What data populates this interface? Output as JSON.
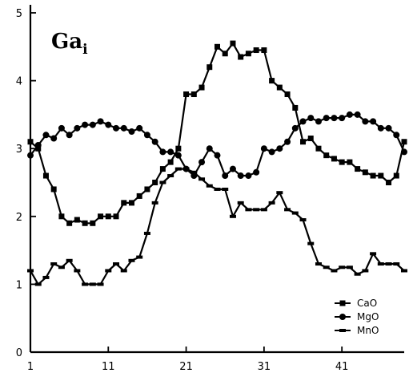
{
  "chart_data": {
    "type": "line",
    "title": "Ga",
    "title_subscript": "i",
    "xlabel": "",
    "ylabel": "",
    "xlim": [
      1,
      49
    ],
    "ylim": [
      0,
      5
    ],
    "xticks": [
      1,
      11,
      21,
      31,
      41
    ],
    "yticks": [
      0,
      1,
      2,
      3,
      4,
      5
    ],
    "grid": false,
    "legend_position": "bottom-right",
    "x": [
      1,
      2,
      3,
      4,
      5,
      6,
      7,
      8,
      9,
      10,
      11,
      12,
      13,
      14,
      15,
      16,
      17,
      18,
      19,
      20,
      21,
      22,
      23,
      24,
      25,
      26,
      27,
      28,
      29,
      30,
      31,
      32,
      33,
      34,
      35,
      36,
      37,
      38,
      39,
      40,
      41,
      42,
      43,
      44,
      45,
      46,
      47,
      48,
      49
    ],
    "series": [
      {
        "name": "CaO",
        "marker": "square",
        "values": [
          3.1,
          3.0,
          2.6,
          2.4,
          2.0,
          1.9,
          1.95,
          1.9,
          1.9,
          2.0,
          2.0,
          2.0,
          2.2,
          2.2,
          2.3,
          2.4,
          2.5,
          2.7,
          2.8,
          3.0,
          3.8,
          3.8,
          3.9,
          4.2,
          4.5,
          4.4,
          4.55,
          4.35,
          4.4,
          4.45,
          4.45,
          4.0,
          3.9,
          3.8,
          3.6,
          3.1,
          3.15,
          3.0,
          2.9,
          2.85,
          2.8,
          2.8,
          2.7,
          2.65,
          2.6,
          2.6,
          2.5,
          2.6,
          3.1
        ]
      },
      {
        "name": "MgO",
        "marker": "diamond",
        "values": [
          2.9,
          3.05,
          3.2,
          3.15,
          3.3,
          3.2,
          3.3,
          3.35,
          3.35,
          3.4,
          3.35,
          3.3,
          3.3,
          3.25,
          3.3,
          3.2,
          3.1,
          2.95,
          2.95,
          2.9,
          2.7,
          2.6,
          2.8,
          3.0,
          2.9,
          2.6,
          2.7,
          2.6,
          2.6,
          2.65,
          3.0,
          2.95,
          3.0,
          3.1,
          3.3,
          3.4,
          3.45,
          3.4,
          3.45,
          3.45,
          3.45,
          3.5,
          3.5,
          3.4,
          3.4,
          3.3,
          3.3,
          3.2,
          2.95
        ]
      },
      {
        "name": "MnO",
        "marker": "bar",
        "values": [
          1.2,
          1.0,
          1.1,
          1.3,
          1.25,
          1.35,
          1.2,
          1.0,
          1.0,
          1.0,
          1.2,
          1.3,
          1.2,
          1.35,
          1.4,
          1.75,
          2.2,
          2.5,
          2.6,
          2.7,
          2.7,
          2.65,
          2.55,
          2.45,
          2.4,
          2.4,
          2.0,
          2.2,
          2.1,
          2.1,
          2.1,
          2.2,
          2.35,
          2.1,
          2.05,
          1.95,
          1.6,
          1.3,
          1.25,
          1.2,
          1.25,
          1.25,
          1.15,
          1.2,
          1.45,
          1.3,
          1.3,
          1.3,
          1.2
        ]
      }
    ]
  }
}
